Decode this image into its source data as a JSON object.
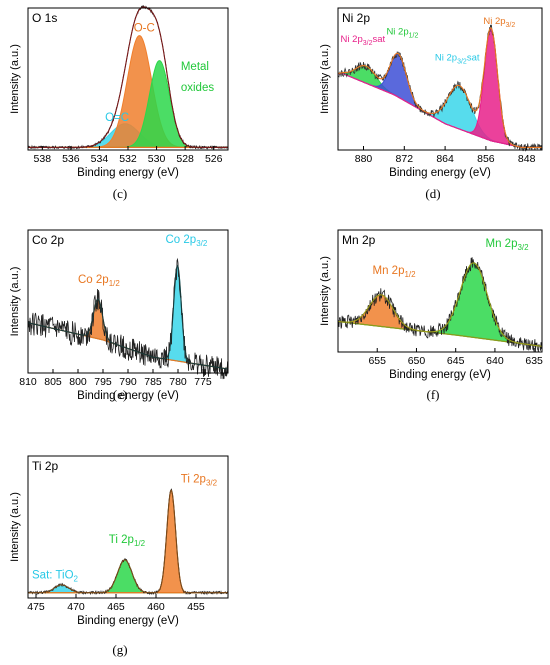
{
  "chart_data": [
    {
      "id": "c",
      "type": "line",
      "title": "O 1s",
      "xlabel": "Binding energy (eV)",
      "ylabel": "Intensity (a.u.)",
      "caption": "(c)",
      "xlim": [
        539,
        525
      ],
      "ylim": [
        0,
        1.08
      ],
      "xticks": [
        538,
        536,
        534,
        532,
        530,
        528,
        526
      ],
      "tick_labels": [
        "538",
        "536",
        "534",
        "532",
        "530",
        "528",
        "526"
      ],
      "baseline": [
        [
          539,
          0.02
        ],
        [
          525,
          0.02
        ]
      ],
      "fills": [
        {
          "name": "O=C",
          "color": "#3ad6ea",
          "peaks": [
            [
              532.2,
              0.18,
              1.0
            ]
          ]
        },
        {
          "name": "O-C",
          "color": "#f07f2d",
          "peaks": [
            [
              531.2,
              0.85,
              0.85
            ]
          ]
        },
        {
          "name": "Metal oxides",
          "color": "#2bd74a",
          "peaks": [
            [
              529.8,
              0.66,
              0.7
            ]
          ]
        }
      ],
      "envelope": {
        "color": "#7a1a1a",
        "peaks": [
          [
            532.2,
            0.18,
            1.0
          ],
          [
            531.2,
            0.85,
            0.85
          ],
          [
            529.8,
            0.66,
            0.7
          ]
        ]
      },
      "raw": {
        "color": "#222222",
        "peaks": [
          [
            532.2,
            0.18,
            1.0
          ],
          [
            531.2,
            0.85,
            0.85
          ],
          [
            529.8,
            0.66,
            0.7
          ]
        ],
        "noise": 0.01
      },
      "labels": [
        {
          "text": "O-C",
          "color": "#e87722",
          "x": 531.6,
          "y": 0.9
        },
        {
          "text": "Metal",
          "color": "#22c83a",
          "x": 528.3,
          "y": 0.61
        },
        {
          "text": "oxides",
          "color": "#22c83a",
          "x": 528.3,
          "y": 0.45
        },
        {
          "text": "O=C",
          "color": "#29c9e6",
          "x": 533.6,
          "y": 0.22
        }
      ]
    },
    {
      "id": "d",
      "type": "line",
      "title": "Ni 2p",
      "xlabel": "Binding energy (eV)",
      "ylabel": "Intensity (a.u.)",
      "caption": "(d)",
      "xlim": [
        885,
        845
      ],
      "ylim": [
        0,
        1.08
      ],
      "xticks": [
        880,
        872,
        864,
        856,
        848
      ],
      "tick_labels": [
        "880",
        "872",
        "864",
        "856",
        "848"
      ],
      "baseline": [
        [
          884,
          0.58
        ],
        [
          874,
          0.42
        ],
        [
          864,
          0.2
        ],
        [
          855,
          0.07
        ],
        [
          849,
          0.02
        ]
      ],
      "fills": [
        {
          "name": "Ni 2p3/2 sat",
          "color": "#2bd74a",
          "peaks": [
            [
              879.5,
              0.13,
              2.0
            ]
          ]
        },
        {
          "name": "Ni 2p1/2",
          "color": "#3d4fd6",
          "peaks": [
            [
              873.2,
              0.33,
              1.6
            ]
          ]
        },
        {
          "name": "Ni 2p sat",
          "color": "#3ad6ea",
          "peaks": [
            [
              861.2,
              0.33,
              2.3
            ]
          ]
        },
        {
          "name": "Ni 2p3/2",
          "color": "#e8208a",
          "peaks": [
            [
              855.0,
              0.85,
              1.3
            ]
          ]
        }
      ],
      "envelope": {
        "color": "#e87722",
        "peaks": [
          [
            879.5,
            0.13,
            2.0
          ],
          [
            873.2,
            0.33,
            1.6
          ],
          [
            861.2,
            0.33,
            2.3
          ],
          [
            855.0,
            0.85,
            1.3
          ]
        ]
      },
      "raw": {
        "color": "#333333",
        "peaks": [
          [
            879.5,
            0.13,
            2.0
          ],
          [
            873.2,
            0.33,
            1.6
          ],
          [
            861.2,
            0.33,
            2.3
          ],
          [
            855.0,
            0.85,
            1.3
          ]
        ],
        "noise": 0.03
      },
      "labels": [
        {
          "text": "Ni 2p",
          "sub": "3/2",
          "suffix": "sat",
          "color": "#e8208a",
          "x": 884.5,
          "y": 0.82
        },
        {
          "text": "Ni 2p",
          "sub": "1/2",
          "color": "#22c83a",
          "x": 875.5,
          "y": 0.88
        },
        {
          "text": "Ni 2p",
          "sub": "3/2",
          "suffix": "sat",
          "color": "#29c9e6",
          "x": 866.0,
          "y": 0.68
        },
        {
          "text": "Ni 2p",
          "sub": "3/2",
          "color": "#e87722",
          "x": 856.5,
          "y": 0.96
        }
      ]
    },
    {
      "id": "e",
      "type": "line",
      "title": "Co 2p",
      "xlabel": "Binding energy (eV)",
      "ylabel": "Intensity (a.u.)",
      "caption": "(e)",
      "xlim": [
        810,
        770
      ],
      "ylim": [
        0,
        1.08
      ],
      "xticks": [
        810,
        805,
        800,
        795,
        790,
        785,
        780,
        775
      ],
      "tick_labels": [
        "810",
        "805",
        "800",
        "795",
        "790",
        "785",
        "780",
        "775"
      ],
      "baseline": [
        [
          810,
          0.38
        ],
        [
          795,
          0.25
        ],
        [
          785,
          0.12
        ],
        [
          770,
          0.03
        ]
      ],
      "fills": [
        {
          "name": "Co 2p1/2",
          "color": "#f07f2d",
          "peaks": [
            [
              796.0,
              0.3,
              0.9
            ]
          ]
        },
        {
          "name": "Co 2p3/2",
          "color": "#3ad6ea",
          "peaks": [
            [
              780.1,
              0.72,
              0.75
            ]
          ]
        }
      ],
      "envelope": {
        "color": "#1a3a3a",
        "peaks": [
          [
            796.0,
            0.3,
            0.9
          ],
          [
            780.1,
            0.72,
            0.75
          ]
        ]
      },
      "raw": {
        "color": "#222222",
        "peaks": [
          [
            796.0,
            0.3,
            0.9
          ],
          [
            780.1,
            0.72,
            0.75
          ]
        ],
        "noise": 0.09
      },
      "labels": [
        {
          "text": "Co 2p",
          "sub": "1/2",
          "color": "#e87722",
          "x": 800.0,
          "y": 0.68
        },
        {
          "text": "Co 2p",
          "sub": "3/2",
          "color": "#29c9e6",
          "x": 782.5,
          "y": 0.98
        }
      ]
    },
    {
      "id": "f",
      "type": "line",
      "title": "Mn 2p",
      "xlabel": "Binding energy (eV)",
      "ylabel": "Intensity (a.u.)",
      "caption": "(f)",
      "xlim": [
        660,
        634
      ],
      "ylim": [
        0,
        1.08
      ],
      "xticks": [
        655,
        650,
        645,
        640,
        635
      ],
      "tick_labels": [
        "655",
        "650",
        "645",
        "640",
        "635"
      ],
      "baseline": [
        [
          660,
          0.27
        ],
        [
          645,
          0.15
        ],
        [
          634,
          0.05
        ]
      ],
      "fills": [
        {
          "name": "Mn 2p1/2",
          "color": "#f07f2d",
          "peaks": [
            [
              654.5,
              0.28,
              1.5
            ]
          ]
        },
        {
          "name": "Mn 2p3/2",
          "color": "#2bd74a",
          "peaks": [
            [
              642.7,
              0.66,
              1.7
            ]
          ]
        }
      ],
      "envelope": {
        "color": "#9e9e1a",
        "peaks": [
          [
            654.5,
            0.28,
            1.5
          ],
          [
            642.7,
            0.66,
            1.7
          ]
        ]
      },
      "raw": {
        "color": "#222222",
        "peaks": [
          [
            654.5,
            0.28,
            1.5
          ],
          [
            642.7,
            0.66,
            1.7
          ]
        ],
        "noise": 0.06
      },
      "labels": [
        {
          "text": "Mn 2p",
          "sub": "1/2",
          "color": "#e87722",
          "x": 655.6,
          "y": 0.69
        },
        {
          "text": "Mn 2p",
          "sub": "3/2",
          "color": "#22c83a",
          "x": 641.2,
          "y": 0.93
        }
      ]
    },
    {
      "id": "g",
      "type": "line",
      "title": "Ti 2p",
      "xlabel": "Binding energy (eV)",
      "ylabel": "Intensity (a.u.)",
      "caption": "(g)",
      "xlim": [
        476,
        451
      ],
      "ylim": [
        0,
        1.08
      ],
      "xticks": [
        475,
        470,
        465,
        460,
        455
      ],
      "tick_labels": [
        "475",
        "470",
        "465",
        "460",
        "455"
      ],
      "baseline": [
        [
          476,
          0.04
        ],
        [
          451,
          0.04
        ]
      ],
      "fills": [
        {
          "name": "Sat: TiO2",
          "color": "#3ad6ea",
          "peaks": [
            [
              471.8,
              0.06,
              0.9
            ]
          ]
        },
        {
          "name": "Ti 2p1/2",
          "color": "#2bd74a",
          "peaks": [
            [
              463.9,
              0.25,
              0.9
            ]
          ]
        },
        {
          "name": "Ti 2p3/2",
          "color": "#f07f2d",
          "peaks": [
            [
              458.1,
              0.78,
              0.55
            ]
          ]
        }
      ],
      "envelope": {
        "color": "#7a4a1a",
        "peaks": [
          [
            471.8,
            0.06,
            0.9
          ],
          [
            463.9,
            0.25,
            0.9
          ],
          [
            458.1,
            0.78,
            0.55
          ]
        ]
      },
      "raw": {
        "color": "#222222",
        "peaks": [
          [
            471.8,
            0.06,
            0.9
          ],
          [
            463.9,
            0.25,
            0.9
          ],
          [
            458.1,
            0.78,
            0.55
          ]
        ],
        "noise": 0.01
      },
      "labels": [
        {
          "text": "Ti 2p",
          "sub": "3/2",
          "color": "#e87722",
          "x": 456.9,
          "y": 0.88
        },
        {
          "text": "Ti 2p",
          "sub": "1/2",
          "color": "#22c83a",
          "x": 465.9,
          "y": 0.42
        },
        {
          "text": "Sat: TiO",
          "sub": "2",
          "sub_low": true,
          "color": "#29c9e6",
          "x": 475.5,
          "y": 0.15
        }
      ]
    }
  ]
}
